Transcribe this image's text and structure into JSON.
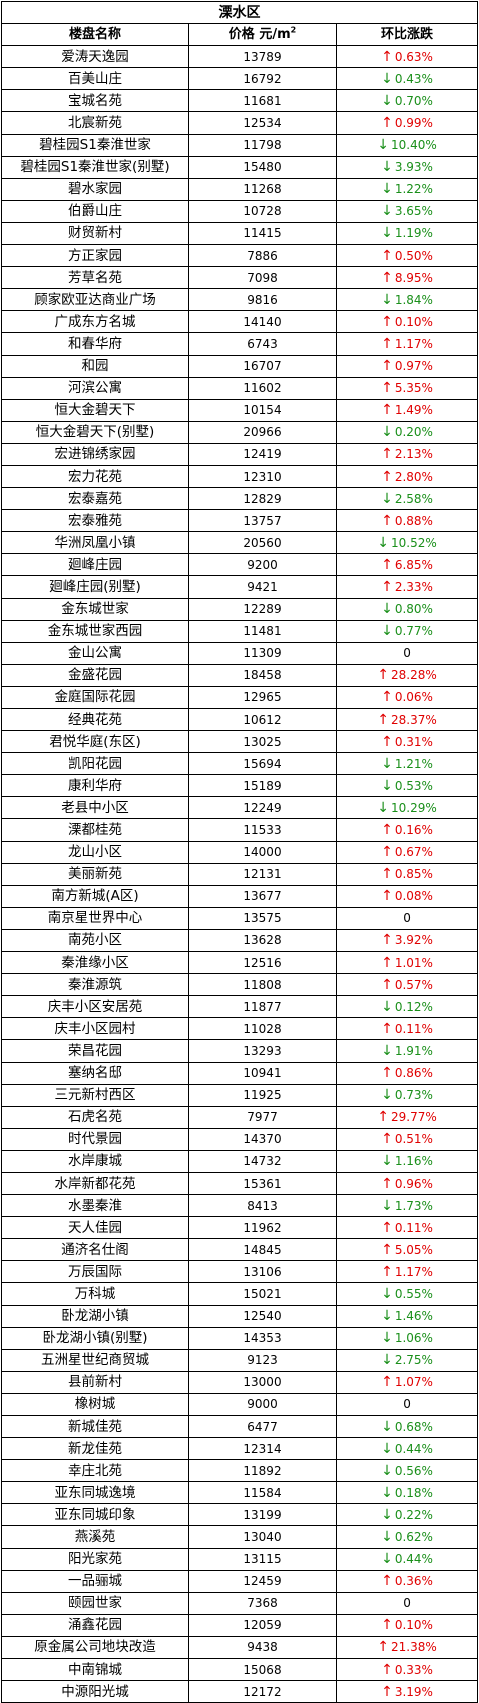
{
  "title": "溧水区",
  "headers": {
    "name": "楼盘名称",
    "price": "价格 元/m",
    "price_sup": "2",
    "change": "环比涨跌"
  },
  "colors": {
    "up": "#e00000",
    "down": "#1a8f1a",
    "flat": "#000000"
  },
  "rows": [
    {
      "name": "爱涛天逸园",
      "price": "13789",
      "dir": "up",
      "change": "0.63%"
    },
    {
      "name": "百美山庄",
      "price": "16792",
      "dir": "down",
      "change": "0.43%"
    },
    {
      "name": "宝城名苑",
      "price": "11681",
      "dir": "down",
      "change": "0.70%"
    },
    {
      "name": "北宸新苑",
      "price": "12534",
      "dir": "up",
      "change": "0.99%"
    },
    {
      "name": "碧桂园S1秦淮世家",
      "price": "11798",
      "dir": "down",
      "change": "10.40%"
    },
    {
      "name": "碧桂园S1秦淮世家(别墅)",
      "price": "15480",
      "dir": "down",
      "change": "3.93%"
    },
    {
      "name": "碧水家园",
      "price": "11268",
      "dir": "down",
      "change": "1.22%"
    },
    {
      "name": "伯爵山庄",
      "price": "10728",
      "dir": "down",
      "change": "3.65%"
    },
    {
      "name": "财贸新村",
      "price": "11415",
      "dir": "down",
      "change": "1.19%"
    },
    {
      "name": "方正家园",
      "price": "7886",
      "dir": "up",
      "change": "0.50%"
    },
    {
      "name": "芳草名苑",
      "price": "7098",
      "dir": "up",
      "change": "8.95%"
    },
    {
      "name": "顾家欧亚达商业广场",
      "price": "9816",
      "dir": "down",
      "change": "1.84%"
    },
    {
      "name": "广成东方名城",
      "price": "14140",
      "dir": "up",
      "change": "0.10%"
    },
    {
      "name": "和春华府",
      "price": "6743",
      "dir": "up",
      "change": "1.17%"
    },
    {
      "name": "和园",
      "price": "16707",
      "dir": "up",
      "change": "0.97%"
    },
    {
      "name": "河滨公寓",
      "price": "11602",
      "dir": "up",
      "change": "5.35%"
    },
    {
      "name": "恒大金碧天下",
      "price": "10154",
      "dir": "up",
      "change": "1.49%"
    },
    {
      "name": "恒大金碧天下(别墅)",
      "price": "20966",
      "dir": "down",
      "change": "0.20%"
    },
    {
      "name": "宏进锦绣家园",
      "price": "12419",
      "dir": "up",
      "change": "2.13%"
    },
    {
      "name": "宏力花苑",
      "price": "12310",
      "dir": "up",
      "change": "2.80%"
    },
    {
      "name": "宏泰嘉苑",
      "price": "12829",
      "dir": "down",
      "change": "2.58%"
    },
    {
      "name": "宏泰雅苑",
      "price": "13757",
      "dir": "up",
      "change": "0.88%"
    },
    {
      "name": "华洲凤凰小镇",
      "price": "20560",
      "dir": "down",
      "change": "10.52%"
    },
    {
      "name": "廻峰庄园",
      "price": "9200",
      "dir": "up",
      "change": "6.85%"
    },
    {
      "name": "廻峰庄园(别墅)",
      "price": "9421",
      "dir": "up",
      "change": "2.33%"
    },
    {
      "name": "金东城世家",
      "price": "12289",
      "dir": "down",
      "change": "0.80%"
    },
    {
      "name": "金东城世家西园",
      "price": "11481",
      "dir": "down",
      "change": "0.77%"
    },
    {
      "name": "金山公寓",
      "price": "11309",
      "dir": "flat",
      "change": "0"
    },
    {
      "name": "金盛花园",
      "price": "18458",
      "dir": "up",
      "change": "28.28%"
    },
    {
      "name": "金庭国际花园",
      "price": "12965",
      "dir": "up",
      "change": "0.06%"
    },
    {
      "name": "经典花苑",
      "price": "10612",
      "dir": "up",
      "change": "28.37%"
    },
    {
      "name": "君悦华庭(东区)",
      "price": "13025",
      "dir": "up",
      "change": "0.31%"
    },
    {
      "name": "凯阳花园",
      "price": "15694",
      "dir": "down",
      "change": "1.21%"
    },
    {
      "name": "康利华府",
      "price": "15189",
      "dir": "down",
      "change": "0.53%"
    },
    {
      "name": "老县中小区",
      "price": "12249",
      "dir": "down",
      "change": "10.29%"
    },
    {
      "name": "溧都桂苑",
      "price": "11533",
      "dir": "up",
      "change": "0.16%"
    },
    {
      "name": "龙山小区",
      "price": "14000",
      "dir": "up",
      "change": "0.67%"
    },
    {
      "name": "美丽新苑",
      "price": "12131",
      "dir": "up",
      "change": "0.85%"
    },
    {
      "name": "南方新城(A区)",
      "price": "13677",
      "dir": "up",
      "change": "0.08%"
    },
    {
      "name": "南京星世界中心",
      "price": "13575",
      "dir": "flat",
      "change": "0"
    },
    {
      "name": "南苑小区",
      "price": "13628",
      "dir": "up",
      "change": "3.92%"
    },
    {
      "name": "秦淮缘小区",
      "price": "12516",
      "dir": "up",
      "change": "1.01%"
    },
    {
      "name": "秦淮源筑",
      "price": "11808",
      "dir": "up",
      "change": "0.57%"
    },
    {
      "name": "庆丰小区安居苑",
      "price": "11877",
      "dir": "down",
      "change": "0.12%"
    },
    {
      "name": "庆丰小区园村",
      "price": "11028",
      "dir": "up",
      "change": "0.11%"
    },
    {
      "name": "荣昌花园",
      "price": "13293",
      "dir": "down",
      "change": "1.91%"
    },
    {
      "name": "塞纳名邸",
      "price": "10941",
      "dir": "up",
      "change": "0.86%"
    },
    {
      "name": "三元新村西区",
      "price": "11925",
      "dir": "down",
      "change": "0.73%"
    },
    {
      "name": "石虎名苑",
      "price": "7977",
      "dir": "up",
      "change": "29.77%"
    },
    {
      "name": "时代景园",
      "price": "14370",
      "dir": "up",
      "change": "0.51%"
    },
    {
      "name": "水岸康城",
      "price": "14732",
      "dir": "down",
      "change": "1.16%"
    },
    {
      "name": "水岸新都花苑",
      "price": "15361",
      "dir": "up",
      "change": "0.96%"
    },
    {
      "name": "水墨秦淮",
      "price": "8413",
      "dir": "down",
      "change": "1.73%"
    },
    {
      "name": "天人佳园",
      "price": "11962",
      "dir": "up",
      "change": "0.11%"
    },
    {
      "name": "通济名仕阁",
      "price": "14845",
      "dir": "up",
      "change": "5.05%"
    },
    {
      "name": "万辰国际",
      "price": "13106",
      "dir": "up",
      "change": "1.17%"
    },
    {
      "name": "万科城",
      "price": "15021",
      "dir": "down",
      "change": "0.55%"
    },
    {
      "name": "卧龙湖小镇",
      "price": "12540",
      "dir": "down",
      "change": "1.46%"
    },
    {
      "name": "卧龙湖小镇(别墅)",
      "price": "14353",
      "dir": "down",
      "change": "1.06%"
    },
    {
      "name": "五洲星世纪商贸城",
      "price": "9123",
      "dir": "down",
      "change": "2.75%"
    },
    {
      "name": "县前新村",
      "price": "13000",
      "dir": "up",
      "change": "1.07%"
    },
    {
      "name": "橡树城",
      "price": "9000",
      "dir": "flat",
      "change": "0"
    },
    {
      "name": "新城佳苑",
      "price": "6477",
      "dir": "down",
      "change": "0.68%"
    },
    {
      "name": "新龙佳苑",
      "price": "12314",
      "dir": "down",
      "change": "0.44%"
    },
    {
      "name": "幸庄北苑",
      "price": "11892",
      "dir": "down",
      "change": "0.56%"
    },
    {
      "name": "亚东同城逸境",
      "price": "11584",
      "dir": "down",
      "change": "0.18%"
    },
    {
      "name": "亚东同城印象",
      "price": "13199",
      "dir": "down",
      "change": "0.22%"
    },
    {
      "name": "燕溪苑",
      "price": "13040",
      "dir": "down",
      "change": "0.62%"
    },
    {
      "name": "阳光家苑",
      "price": "13115",
      "dir": "down",
      "change": "0.44%"
    },
    {
      "name": "一品骊城",
      "price": "12459",
      "dir": "up",
      "change": "0.36%"
    },
    {
      "name": "颐园世家",
      "price": "7368",
      "dir": "flat",
      "change": "0"
    },
    {
      "name": "涌鑫花园",
      "price": "12059",
      "dir": "up",
      "change": "0.10%"
    },
    {
      "name": "原金属公司地块改造",
      "price": "9438",
      "dir": "up",
      "change": "21.38%"
    },
    {
      "name": "中南锦城",
      "price": "15068",
      "dir": "up",
      "change": "0.33%"
    },
    {
      "name": "中源阳光城",
      "price": "12172",
      "dir": "up",
      "change": "3.19%"
    }
  ]
}
